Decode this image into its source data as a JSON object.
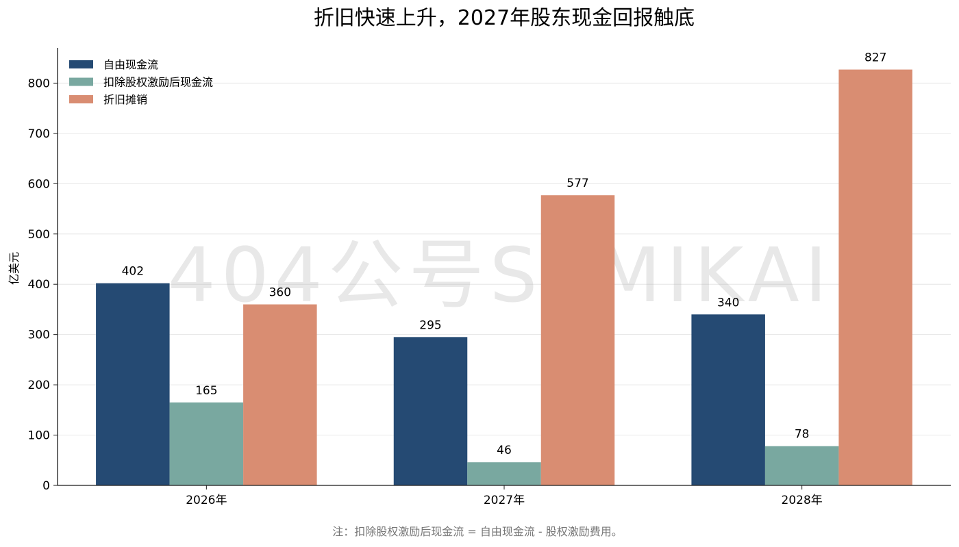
{
  "title": "折旧快速上升，2027年股东现金回报触底",
  "note": "注：扣除股权激励后现金流 = 自由现金流 - 股权激励费用。",
  "watermark": "404公号SEMIKAI",
  "chart_data": {
    "type": "bar",
    "title": "折旧快速上升，2027年股东现金回报触底",
    "xlabel": "",
    "ylabel": "亿美元",
    "ylim": [
      0,
      870
    ],
    "yticks": [
      0,
      100,
      200,
      300,
      400,
      500,
      600,
      700,
      800
    ],
    "grid": "horizontal",
    "legend_position": "top-left",
    "categories": [
      "2026年",
      "2027年",
      "2028年"
    ],
    "series": [
      {
        "name": "自由现金流",
        "values": [
          402,
          295,
          340
        ],
        "color": "#254a73"
      },
      {
        "name": "扣除股权激励后现金流",
        "values": [
          165,
          46,
          78
        ],
        "color": "#79a8a0"
      },
      {
        "name": "折旧摊销",
        "values": [
          360,
          577,
          827
        ],
        "color": "#d98d72"
      }
    ]
  }
}
